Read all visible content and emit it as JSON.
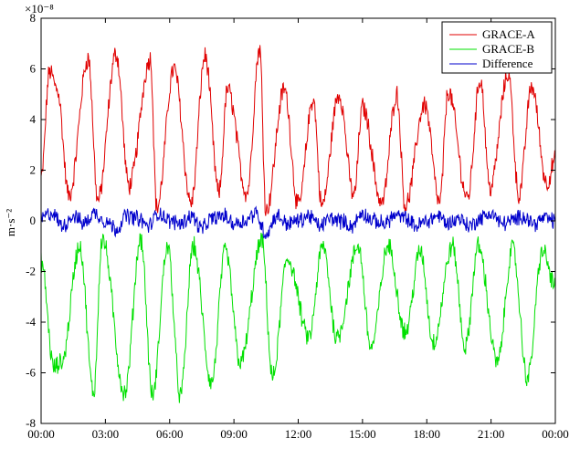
{
  "chart_data": {
    "type": "line",
    "title": "",
    "xlabel": "",
    "ylabel": "m·s⁻²",
    "y_scale_label": "×10⁻⁸",
    "y_scale_factor": 1e-08,
    "xlim": [
      0,
      24
    ],
    "ylim": [
      -8,
      8
    ],
    "x_ticks": [
      0,
      3,
      6,
      9,
      12,
      15,
      18,
      21,
      24
    ],
    "x_tick_labels": [
      "00:00",
      "03:00",
      "06:00",
      "09:00",
      "12:00",
      "15:00",
      "18:00",
      "21:00",
      "00:00"
    ],
    "y_ticks": [
      -8,
      -6,
      -4,
      -2,
      0,
      2,
      4,
      6,
      8
    ],
    "y_tick_labels": [
      "-8",
      "-6",
      "-4",
      "-2",
      "0",
      "2",
      "4",
      "6",
      "8"
    ],
    "grid": false,
    "legend_position": "top-right",
    "series": [
      {
        "name": "GRACE-A",
        "color": "#e00000",
        "x": [
          0.0,
          0.4,
          0.75,
          1.3,
          2.2,
          2.65,
          3.5,
          4.1,
          5.1,
          5.4,
          6.2,
          7.0,
          7.65,
          8.3,
          8.7,
          9.6,
          10.2,
          10.5,
          11.35,
          12.0,
          12.7,
          13.1,
          13.9,
          14.6,
          15.0,
          15.9,
          16.6,
          17.0,
          17.9,
          18.6,
          19.0,
          19.9,
          20.5,
          20.95,
          21.8,
          22.3,
          22.9,
          23.6,
          24.0
        ],
        "values": [
          1.7,
          5.9,
          5.2,
          1.0,
          6.4,
          0.8,
          6.6,
          1.4,
          6.4,
          0.5,
          6.0,
          0.7,
          6.5,
          1.1,
          5.2,
          1.1,
          6.8,
          0.4,
          5.2,
          0.6,
          4.8,
          0.6,
          5.0,
          1.0,
          4.5,
          0.7,
          5.0,
          0.6,
          4.6,
          0.7,
          5.1,
          0.9,
          5.6,
          1.3,
          5.8,
          1.0,
          5.3,
          1.5,
          2.4
        ]
      },
      {
        "name": "GRACE-B",
        "color": "#00e000",
        "x": [
          0.0,
          0.6,
          0.95,
          1.8,
          2.45,
          2.85,
          3.9,
          4.65,
          5.2,
          5.9,
          6.5,
          7.1,
          7.95,
          8.6,
          9.3,
          10.3,
          10.8,
          11.5,
          12.5,
          13.15,
          13.8,
          14.8,
          15.4,
          16.2,
          17.0,
          17.7,
          18.3,
          19.2,
          19.8,
          20.4,
          21.3,
          22.0,
          22.7,
          23.4,
          24.0
        ],
        "values": [
          -1.6,
          -5.8,
          -5.6,
          -1.0,
          -6.8,
          -0.7,
          -6.8,
          -0.7,
          -6.9,
          -1.0,
          -6.9,
          -1.0,
          -6.4,
          -1.2,
          -5.6,
          -0.8,
          -6.2,
          -1.5,
          -4.6,
          -1.0,
          -4.6,
          -1.0,
          -5.0,
          -1.0,
          -4.4,
          -1.2,
          -4.8,
          -1.0,
          -5.0,
          -1.0,
          -5.6,
          -1.1,
          -6.2,
          -1.2,
          -2.6
        ]
      },
      {
        "name": "Difference",
        "color": "#0000cc",
        "x": [
          0.0,
          0.5,
          1.0,
          1.5,
          2.0,
          2.5,
          3.0,
          3.5,
          4.0,
          4.5,
          5.0,
          5.5,
          6.0,
          6.5,
          7.0,
          7.5,
          8.0,
          8.5,
          9.0,
          9.5,
          10.0,
          10.5,
          11.0,
          11.5,
          12.0,
          12.5,
          13.0,
          13.5,
          14.0,
          14.5,
          15.0,
          15.5,
          16.0,
          16.5,
          17.0,
          17.5,
          18.0,
          18.5,
          19.0,
          19.5,
          20.0,
          20.5,
          21.0,
          21.5,
          22.0,
          22.5,
          23.0,
          23.5,
          24.0
        ],
        "values": [
          0.1,
          0.3,
          -0.2,
          0.2,
          -0.1,
          0.3,
          0.0,
          -0.3,
          0.2,
          0.1,
          -0.2,
          0.3,
          0.0,
          -0.1,
          0.2,
          -0.3,
          0.1,
          0.2,
          -0.1,
          0.0,
          0.3,
          -0.5,
          0.2,
          -0.1,
          0.0,
          0.2,
          -0.2,
          0.1,
          0.0,
          -0.2,
          0.3,
          0.0,
          -0.1,
          0.2,
          0.1,
          -0.2,
          0.0,
          0.2,
          -0.1,
          0.1,
          -0.2,
          0.1,
          0.3,
          -0.1,
          0.0,
          0.2,
          -0.1,
          0.1,
          0.0
        ]
      }
    ]
  }
}
